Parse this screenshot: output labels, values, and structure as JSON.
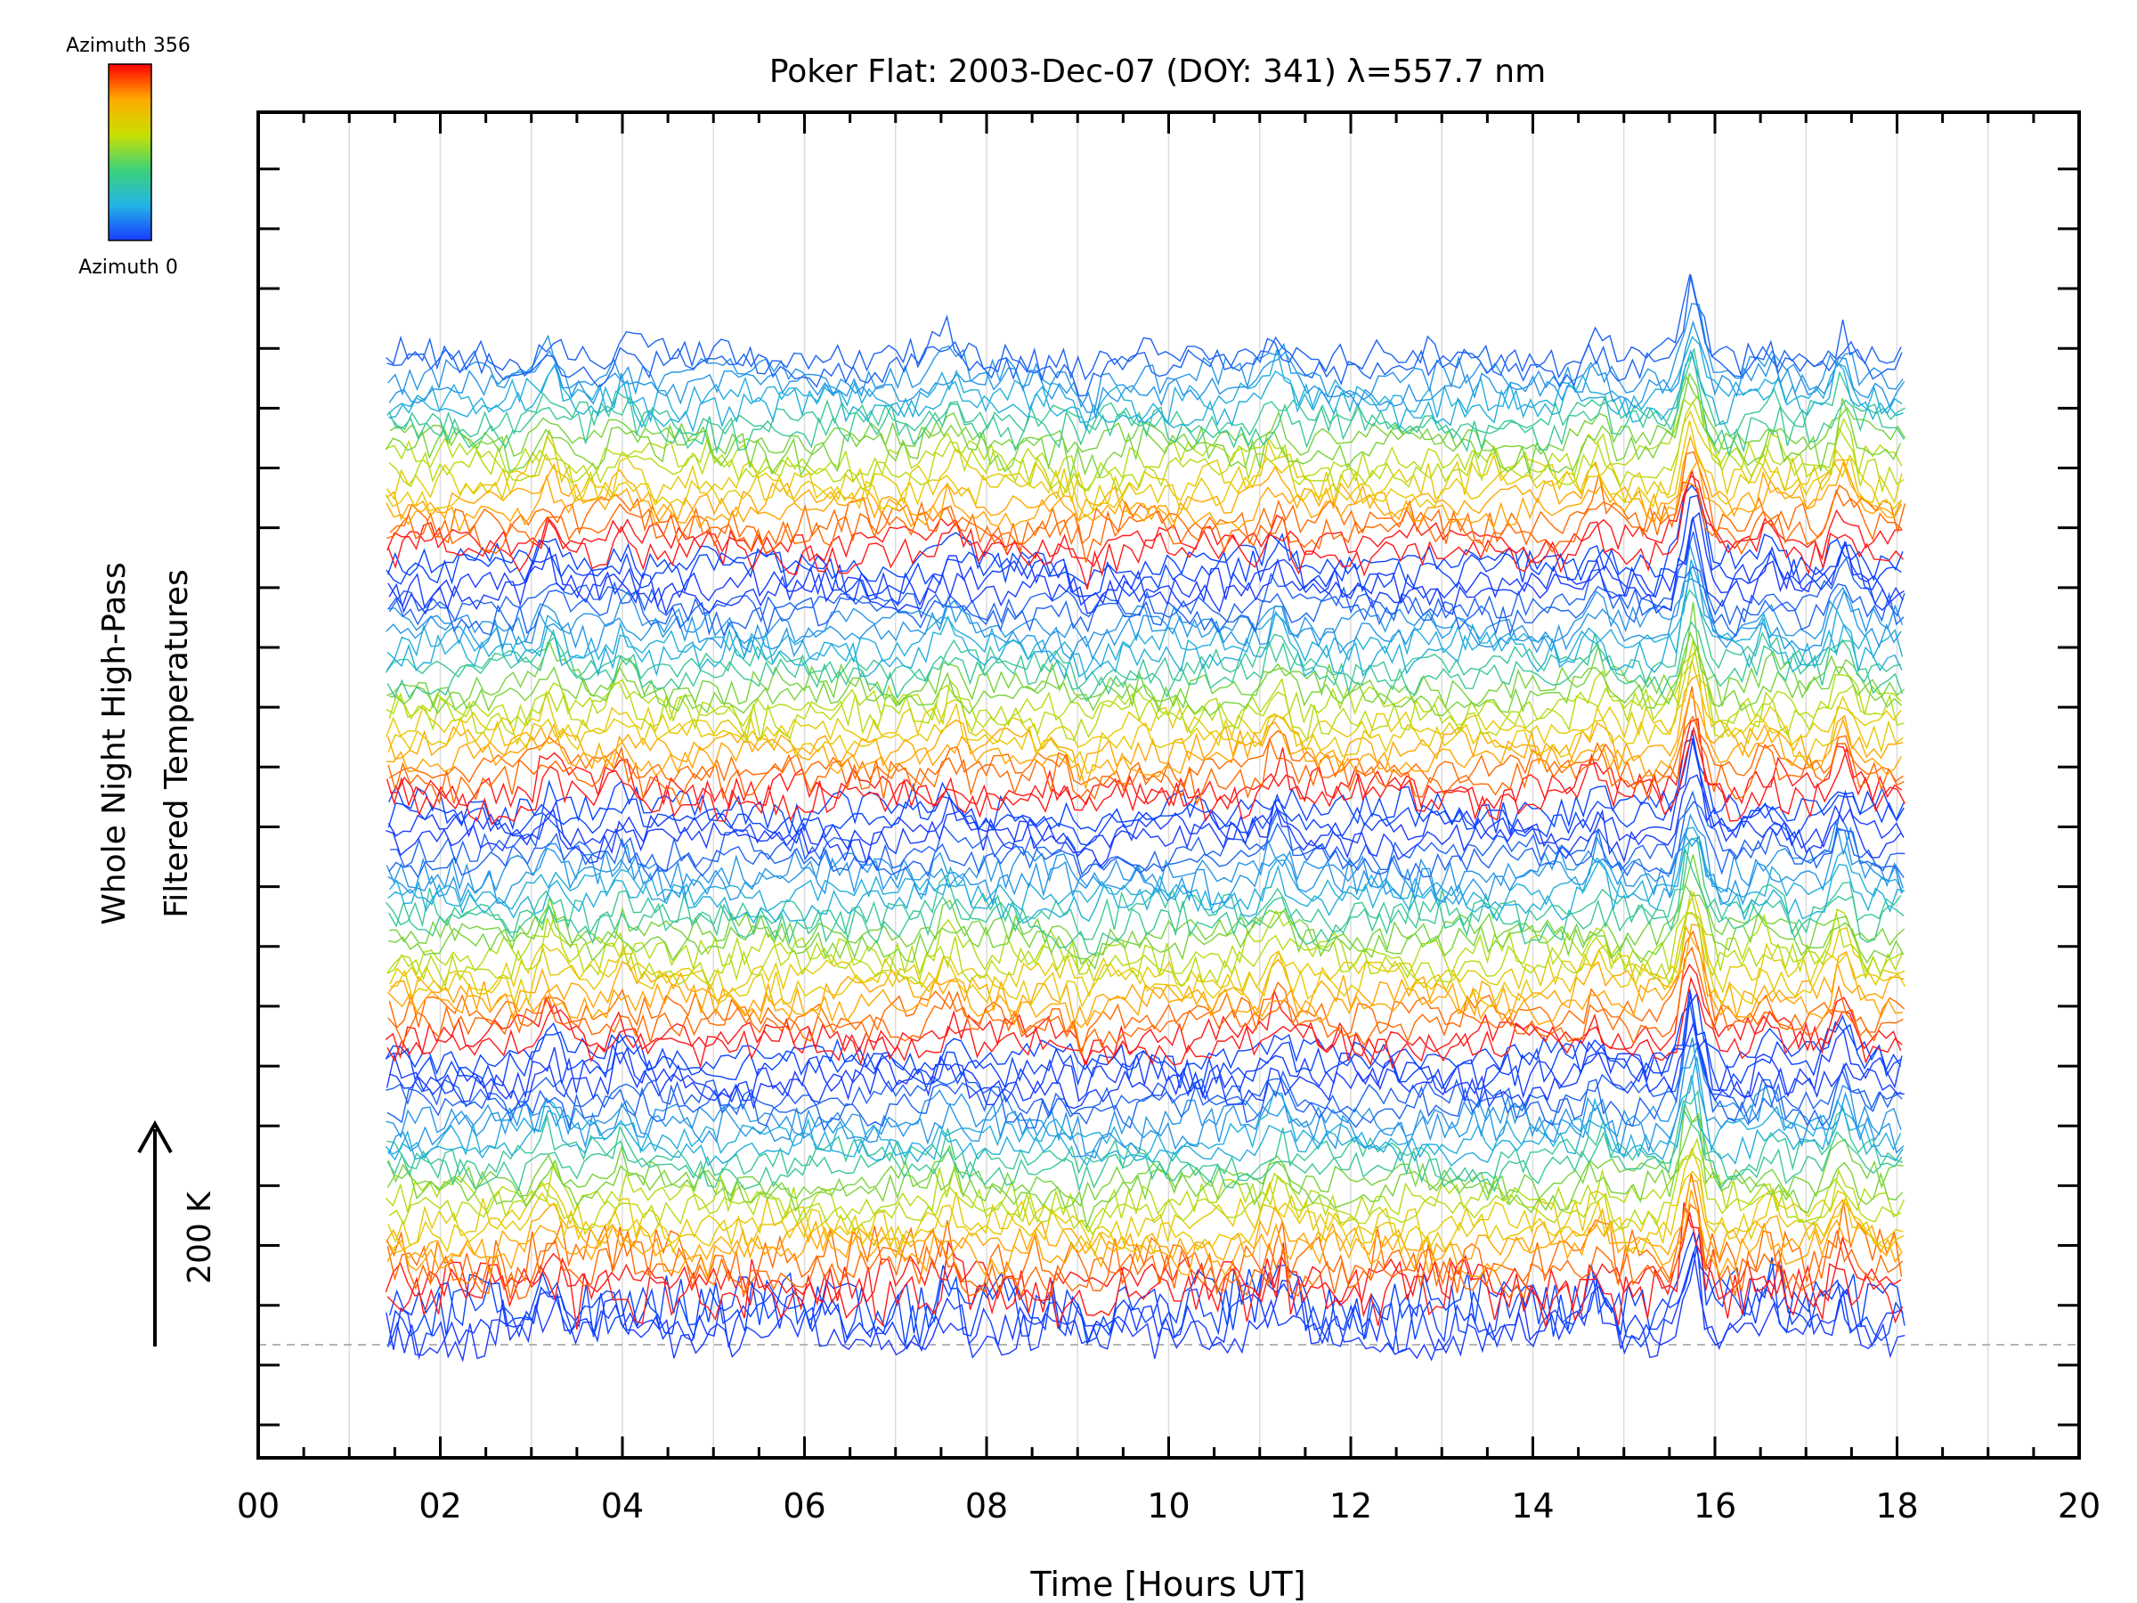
{
  "chart_data": {
    "type": "line",
    "title": "Poker Flat: 2003-Dec-07 (DOY: 341) λ=557.7 nm",
    "xlabel": "Time [Hours UT]",
    "ylabel_line1": "Whole Night High-Pass",
    "ylabel_line2": "Filtered Temperatures",
    "xlim": [
      0,
      20
    ],
    "x_tick_labels": [
      "00",
      "02",
      "04",
      "06",
      "08",
      "10",
      "12",
      "14",
      "16",
      "18",
      "20"
    ],
    "x_tick_values": [
      0,
      2,
      4,
      6,
      8,
      10,
      12,
      14,
      16,
      18,
      20
    ],
    "x_minor_step": 0.5,
    "y_major_ticks": 22,
    "grid": "vertical lines every 1 hour",
    "scale_arrow_label": "200 K",
    "legend": {
      "type": "colorbar",
      "placement": "top-left",
      "top_label": "Azimuth 356",
      "bottom_label": "Azimuth 0",
      "colors": [
        "#ff0000",
        "#ffaa00",
        "#c8e000",
        "#3cd27a",
        "#22b4e6",
        "#1a3cff"
      ]
    },
    "data_time_range": [
      1.4,
      18.1
    ],
    "num_traces": 96,
    "trace_offset_k": 20,
    "shared_events": [
      {
        "t": 3.2,
        "amp_k": 45
      },
      {
        "t": 4.0,
        "amp_k": 30
      },
      {
        "t": 7.6,
        "amp_k": 35
      },
      {
        "t": 9.1,
        "amp_k": -30
      },
      {
        "t": 11.2,
        "amp_k": 45
      },
      {
        "t": 14.7,
        "amp_k": 40
      },
      {
        "t": 15.75,
        "amp_k": 130
      },
      {
        "t": 16.6,
        "amp_k": 35
      },
      {
        "t": 17.4,
        "amp_k": 60
      }
    ],
    "band_colors": [
      "#1a3cff",
      "#0a46ff",
      "#ff1a1a",
      "#ff6a00",
      "#ffa500",
      "#e6c800",
      "#b4dc14",
      "#78d23c",
      "#3cc896",
      "#23afdc",
      "#2896e6",
      "#1f64f0"
    ]
  }
}
